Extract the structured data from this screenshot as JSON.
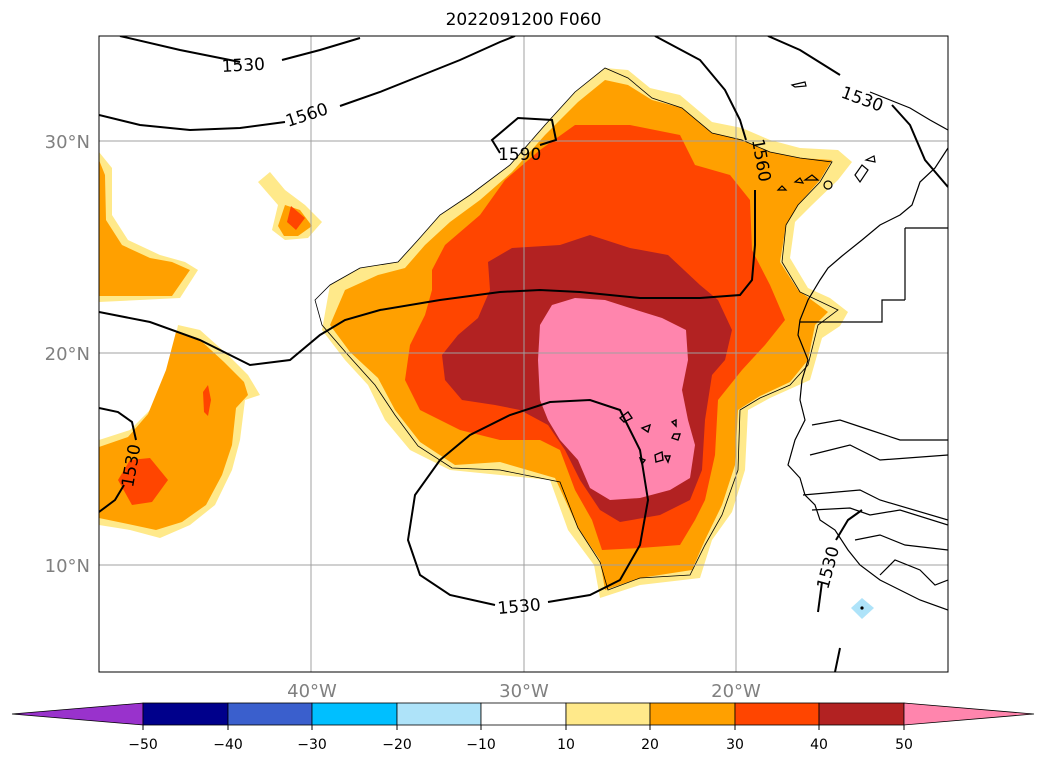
{
  "title": "2022091200 F060",
  "map": {
    "lat_labels": [
      "30°N",
      "20°N",
      "10°N"
    ],
    "lon_labels": [
      "40°W",
      "30°W",
      "20°W"
    ],
    "contour_labels": [
      "1530",
      "1560",
      "1590",
      "1560",
      "1530",
      "1530",
      "1530",
      "1530"
    ],
    "fill_colors": {
      "10-20": "#ffe98a",
      "20-30": "#ffa000",
      "30-40": "#ff4500",
      "40-50": "#b22222",
      "50+": "#ff85ad",
      "-20--10": "#aee3f9"
    }
  },
  "colorbar": {
    "tick_labels": [
      "−50",
      "−40",
      "−30",
      "−20",
      "−10",
      "10",
      "20",
      "30",
      "40",
      "50"
    ],
    "segments": [
      {
        "range": "<-50",
        "color": "#9932cc"
      },
      {
        "range": "-50--40",
        "color": "#00008b"
      },
      {
        "range": "-40--30",
        "color": "#3a5fcd"
      },
      {
        "range": "-30--20",
        "color": "#00bfff"
      },
      {
        "range": "-20--10",
        "color": "#aee3f9"
      },
      {
        "range": "-10-10",
        "color": "#ffffff"
      },
      {
        "range": "10-20",
        "color": "#ffe98a"
      },
      {
        "range": "20-30",
        "color": "#ffa000"
      },
      {
        "range": "30-40",
        "color": "#ff4500"
      },
      {
        "range": "40-50",
        "color": "#b22222"
      },
      {
        "range": ">50",
        "color": "#ff85ad"
      }
    ]
  }
}
